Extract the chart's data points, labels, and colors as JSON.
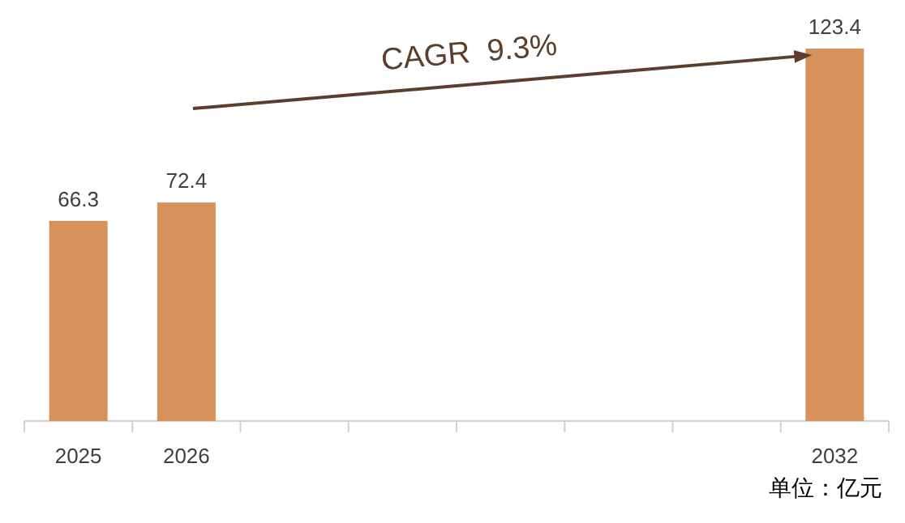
{
  "chart_data": {
    "type": "bar",
    "categories": [
      "2025",
      "2026",
      null,
      null,
      null,
      null,
      null,
      "2032"
    ],
    "values": [
      66.3,
      72.4,
      null,
      null,
      null,
      null,
      null,
      123.4
    ],
    "color": "#d6925a",
    "data_labels": true,
    "annotations": [
      "CAGR  9.3%",
      "单位：亿元"
    ]
  }
}
